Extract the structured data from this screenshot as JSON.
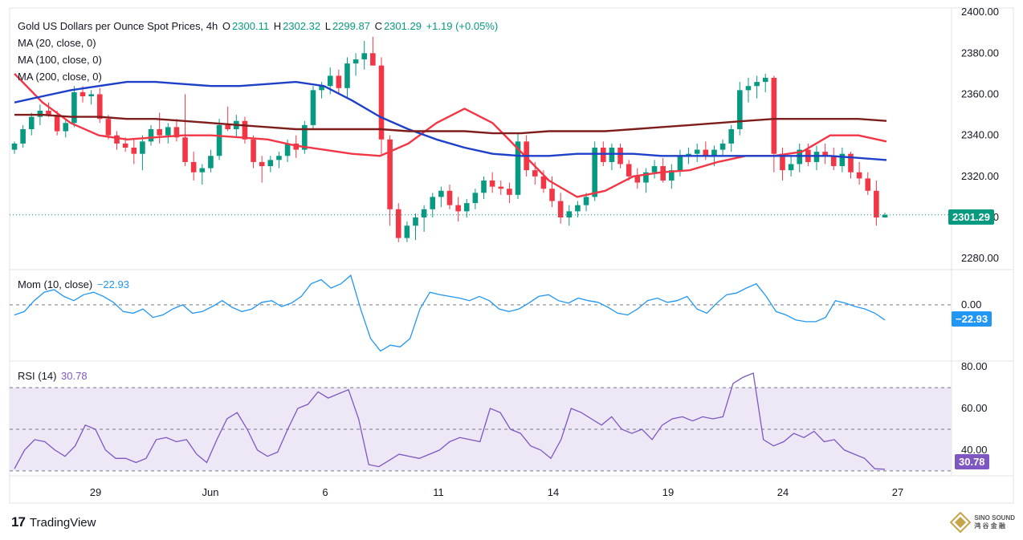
{
  "header": {
    "title": "Gold US Dollars per Ounce Spot Prices, 4h",
    "o_label": "O",
    "o_value": "2300.11",
    "h_label": "H",
    "h_value": "2302.32",
    "l_label": "L",
    "l_value": "2299.87",
    "c_label": "C",
    "c_value": "2301.29",
    "change": "+1.19 (+0.05%)"
  },
  "legends": {
    "ma20": "MA (20, close, 0)",
    "ma100": "MA (100, close, 0)",
    "ma200": "MA (200, close, 0)",
    "mom_label": "Mom (10, close)",
    "mom_value": "−22.93",
    "rsi_label": "RSI (14)",
    "rsi_value": "30.78"
  },
  "badges": {
    "price": "2301.29",
    "mom": "−22.93",
    "rsi": "30.78"
  },
  "footer": {
    "brand": "TradingView",
    "watermark_line1": "SINO SOUND",
    "watermark_line2": "鸿 谷 金 融"
  },
  "colors": {
    "up": "#089981",
    "down": "#f23645",
    "ma20": "#f23645",
    "ma100": "#1e40c8",
    "ma200": "#7f1d1d",
    "mom": "#2196f3",
    "rsi": "#7e57c2",
    "rsi_band": "#ede7f6"
  },
  "chart_data": [
    {
      "type": "candlestick",
      "title": "Gold US Dollars per Ounce Spot Prices, 4h",
      "price_ticks": [
        "2400.00",
        "2380.00",
        "2360.00",
        "2340.00",
        "2320.00",
        "2300.00",
        "2280.00"
      ],
      "ylim": [
        2275,
        2402
      ],
      "x_tick_labels": [
        "29",
        "Jun",
        "6",
        "11",
        "14",
        "19",
        "24",
        "27"
      ],
      "last_price": 2301.29,
      "candles": [
        {
          "o": 2333,
          "h": 2337,
          "l": 2331,
          "c": 2336
        },
        {
          "o": 2336,
          "h": 2345,
          "l": 2334,
          "c": 2343
        },
        {
          "o": 2343,
          "h": 2351,
          "l": 2340,
          "c": 2349
        },
        {
          "o": 2349,
          "h": 2355,
          "l": 2345,
          "c": 2352
        },
        {
          "o": 2352,
          "h": 2356,
          "l": 2349,
          "c": 2350
        },
        {
          "o": 2350,
          "h": 2352,
          "l": 2340,
          "c": 2342
        },
        {
          "o": 2342,
          "h": 2348,
          "l": 2339,
          "c": 2346
        },
        {
          "o": 2346,
          "h": 2364,
          "l": 2344,
          "c": 2361
        },
        {
          "o": 2361,
          "h": 2364,
          "l": 2356,
          "c": 2359
        },
        {
          "o": 2359,
          "h": 2362,
          "l": 2355,
          "c": 2360
        },
        {
          "o": 2360,
          "h": 2363,
          "l": 2346,
          "c": 2348
        },
        {
          "o": 2348,
          "h": 2350,
          "l": 2338,
          "c": 2340
        },
        {
          "o": 2340,
          "h": 2342,
          "l": 2333,
          "c": 2336
        },
        {
          "o": 2336,
          "h": 2339,
          "l": 2332,
          "c": 2334
        },
        {
          "o": 2334,
          "h": 2338,
          "l": 2326,
          "c": 2331
        },
        {
          "o": 2331,
          "h": 2340,
          "l": 2323,
          "c": 2337
        },
        {
          "o": 2337,
          "h": 2345,
          "l": 2335,
          "c": 2343
        },
        {
          "o": 2343,
          "h": 2351,
          "l": 2336,
          "c": 2340
        },
        {
          "o": 2340,
          "h": 2346,
          "l": 2336,
          "c": 2344
        },
        {
          "o": 2344,
          "h": 2348,
          "l": 2337,
          "c": 2339
        },
        {
          "o": 2339,
          "h": 2360,
          "l": 2325,
          "c": 2327
        },
        {
          "o": 2327,
          "h": 2332,
          "l": 2318,
          "c": 2322
        },
        {
          "o": 2322,
          "h": 2326,
          "l": 2316,
          "c": 2324
        },
        {
          "o": 2324,
          "h": 2333,
          "l": 2322,
          "c": 2330
        },
        {
          "o": 2330,
          "h": 2348,
          "l": 2328,
          "c": 2345
        },
        {
          "o": 2345,
          "h": 2354,
          "l": 2342,
          "c": 2343
        },
        {
          "o": 2343,
          "h": 2350,
          "l": 2339,
          "c": 2347
        },
        {
          "o": 2347,
          "h": 2349,
          "l": 2336,
          "c": 2338
        },
        {
          "o": 2338,
          "h": 2340,
          "l": 2324,
          "c": 2327
        },
        {
          "o": 2327,
          "h": 2330,
          "l": 2317,
          "c": 2325
        },
        {
          "o": 2325,
          "h": 2330,
          "l": 2322,
          "c": 2328
        },
        {
          "o": 2328,
          "h": 2332,
          "l": 2324,
          "c": 2330
        },
        {
          "o": 2330,
          "h": 2338,
          "l": 2327,
          "c": 2336
        },
        {
          "o": 2336,
          "h": 2340,
          "l": 2329,
          "c": 2333
        },
        {
          "o": 2333,
          "h": 2347,
          "l": 2331,
          "c": 2345
        },
        {
          "o": 2345,
          "h": 2364,
          "l": 2343,
          "c": 2362
        },
        {
          "o": 2362,
          "h": 2366,
          "l": 2358,
          "c": 2364
        },
        {
          "o": 2364,
          "h": 2373,
          "l": 2360,
          "c": 2369
        },
        {
          "o": 2369,
          "h": 2372,
          "l": 2360,
          "c": 2363
        },
        {
          "o": 2363,
          "h": 2378,
          "l": 2358,
          "c": 2375
        },
        {
          "o": 2375,
          "h": 2380,
          "l": 2369,
          "c": 2377
        },
        {
          "o": 2377,
          "h": 2386,
          "l": 2372,
          "c": 2380
        },
        {
          "o": 2380,
          "h": 2388,
          "l": 2374,
          "c": 2374
        },
        {
          "o": 2374,
          "h": 2378,
          "l": 2330,
          "c": 2338
        },
        {
          "o": 2338,
          "h": 2340,
          "l": 2296,
          "c": 2304
        },
        {
          "o": 2304,
          "h": 2307,
          "l": 2288,
          "c": 2290
        },
        {
          "o": 2290,
          "h": 2298,
          "l": 2288,
          "c": 2296
        },
        {
          "o": 2296,
          "h": 2302,
          "l": 2289,
          "c": 2300
        },
        {
          "o": 2300,
          "h": 2306,
          "l": 2293,
          "c": 2304
        },
        {
          "o": 2304,
          "h": 2312,
          "l": 2300,
          "c": 2310
        },
        {
          "o": 2310,
          "h": 2315,
          "l": 2305,
          "c": 2313
        },
        {
          "o": 2313,
          "h": 2316,
          "l": 2304,
          "c": 2306
        },
        {
          "o": 2306,
          "h": 2310,
          "l": 2298,
          "c": 2303
        },
        {
          "o": 2303,
          "h": 2309,
          "l": 2300,
          "c": 2307
        },
        {
          "o": 2307,
          "h": 2314,
          "l": 2304,
          "c": 2312
        },
        {
          "o": 2312,
          "h": 2320,
          "l": 2309,
          "c": 2318
        },
        {
          "o": 2318,
          "h": 2322,
          "l": 2312,
          "c": 2315
        },
        {
          "o": 2315,
          "h": 2318,
          "l": 2311,
          "c": 2314
        },
        {
          "o": 2314,
          "h": 2317,
          "l": 2307,
          "c": 2311
        },
        {
          "o": 2311,
          "h": 2341,
          "l": 2309,
          "c": 2337
        },
        {
          "o": 2337,
          "h": 2340,
          "l": 2320,
          "c": 2323
        },
        {
          "o": 2323,
          "h": 2327,
          "l": 2316,
          "c": 2320
        },
        {
          "o": 2320,
          "h": 2323,
          "l": 2312,
          "c": 2314
        },
        {
          "o": 2314,
          "h": 2320,
          "l": 2305,
          "c": 2308
        },
        {
          "o": 2308,
          "h": 2312,
          "l": 2297,
          "c": 2300
        },
        {
          "o": 2300,
          "h": 2306,
          "l": 2296,
          "c": 2303
        },
        {
          "o": 2303,
          "h": 2308,
          "l": 2300,
          "c": 2306
        },
        {
          "o": 2306,
          "h": 2312,
          "l": 2303,
          "c": 2310
        },
        {
          "o": 2310,
          "h": 2337,
          "l": 2308,
          "c": 2334
        },
        {
          "o": 2334,
          "h": 2337,
          "l": 2325,
          "c": 2327
        },
        {
          "o": 2327,
          "h": 2336,
          "l": 2323,
          "c": 2334
        },
        {
          "o": 2334,
          "h": 2336,
          "l": 2324,
          "c": 2326
        },
        {
          "o": 2326,
          "h": 2328,
          "l": 2318,
          "c": 2320
        },
        {
          "o": 2320,
          "h": 2324,
          "l": 2314,
          "c": 2317
        },
        {
          "o": 2317,
          "h": 2324,
          "l": 2312,
          "c": 2322
        },
        {
          "o": 2322,
          "h": 2328,
          "l": 2319,
          "c": 2325
        },
        {
          "o": 2325,
          "h": 2329,
          "l": 2317,
          "c": 2318
        },
        {
          "o": 2318,
          "h": 2326,
          "l": 2314,
          "c": 2323
        },
        {
          "o": 2323,
          "h": 2333,
          "l": 2320,
          "c": 2330
        },
        {
          "o": 2330,
          "h": 2334,
          "l": 2326,
          "c": 2331
        },
        {
          "o": 2331,
          "h": 2336,
          "l": 2327,
          "c": 2333
        },
        {
          "o": 2333,
          "h": 2337,
          "l": 2328,
          "c": 2330
        },
        {
          "o": 2330,
          "h": 2335,
          "l": 2325,
          "c": 2333
        },
        {
          "o": 2333,
          "h": 2338,
          "l": 2330,
          "c": 2336
        },
        {
          "o": 2336,
          "h": 2345,
          "l": 2332,
          "c": 2343
        },
        {
          "o": 2343,
          "h": 2366,
          "l": 2340,
          "c": 2362
        },
        {
          "o": 2362,
          "h": 2368,
          "l": 2356,
          "c": 2364
        },
        {
          "o": 2364,
          "h": 2369,
          "l": 2358,
          "c": 2366
        },
        {
          "o": 2366,
          "h": 2370,
          "l": 2361,
          "c": 2368
        },
        {
          "o": 2368,
          "h": 2369,
          "l": 2322,
          "c": 2331
        },
        {
          "o": 2331,
          "h": 2334,
          "l": 2318,
          "c": 2323
        },
        {
          "o": 2323,
          "h": 2330,
          "l": 2320,
          "c": 2326
        },
        {
          "o": 2326,
          "h": 2336,
          "l": 2322,
          "c": 2333
        },
        {
          "o": 2333,
          "h": 2336,
          "l": 2325,
          "c": 2327
        },
        {
          "o": 2327,
          "h": 2335,
          "l": 2323,
          "c": 2332
        },
        {
          "o": 2332,
          "h": 2336,
          "l": 2326,
          "c": 2330
        },
        {
          "o": 2330,
          "h": 2334,
          "l": 2323,
          "c": 2325
        },
        {
          "o": 2325,
          "h": 2334,
          "l": 2322,
          "c": 2331
        },
        {
          "o": 2331,
          "h": 2332,
          "l": 2319,
          "c": 2322
        },
        {
          "o": 2322,
          "h": 2327,
          "l": 2316,
          "c": 2319
        },
        {
          "o": 2319,
          "h": 2322,
          "l": 2311,
          "c": 2313
        },
        {
          "o": 2313,
          "h": 2318,
          "l": 2296,
          "c": 2300
        },
        {
          "o": 2300,
          "h": 2302.32,
          "l": 2299.87,
          "c": 2301.29
        }
      ],
      "moving_averages": [
        {
          "name": "MA (20, close, 0)",
          "values": [
            2370,
            2356,
            2346,
            2340,
            2338,
            2339,
            2340,
            2340,
            2339,
            2338,
            2335,
            2333,
            2331,
            2330,
            2336,
            2346,
            2353,
            2346,
            2332,
            2318,
            2310,
            2313,
            2320,
            2322,
            2323,
            2327,
            2330,
            2330,
            2332,
            2340,
            2340,
            2337
          ]
        },
        {
          "name": "MA (100, close, 0)",
          "values": [
            2356,
            2359,
            2362,
            2364,
            2366,
            2366,
            2365,
            2364,
            2364,
            2365,
            2366,
            2364,
            2357,
            2349,
            2343,
            2338,
            2334,
            2331,
            2330,
            2330,
            2331,
            2331,
            2331,
            2330,
            2330,
            2330,
            2330,
            2330,
            2330,
            2330,
            2329,
            2328
          ]
        },
        {
          "name": "MA (200, close, 0)",
          "values": [
            2350,
            2350,
            2349,
            2349,
            2348,
            2348,
            2347,
            2346,
            2345,
            2344,
            2343,
            2343,
            2343,
            2343,
            2342,
            2342,
            2342,
            2341,
            2341,
            2342,
            2342,
            2342,
            2343,
            2344,
            2345,
            2346,
            2347,
            2348,
            2348,
            2348,
            2348,
            2347
          ]
        }
      ]
    },
    {
      "type": "line",
      "title": "Mom (10, close)",
      "last_value": -22.93,
      "y_tick_labels": [
        "0.00"
      ],
      "ylim": [
        -65,
        40
      ],
      "values": [
        -12,
        -8,
        5,
        15,
        18,
        10,
        5,
        12,
        15,
        10,
        3,
        -8,
        -10,
        -5,
        -15,
        -12,
        -5,
        0,
        -10,
        -8,
        -2,
        5,
        -3,
        -8,
        -5,
        3,
        5,
        -2,
        2,
        10,
        25,
        30,
        20,
        25,
        35,
        -5,
        -40,
        -55,
        -48,
        -50,
        -40,
        -5,
        15,
        12,
        10,
        8,
        5,
        10,
        5,
        -5,
        -8,
        -5,
        2,
        10,
        12,
        5,
        2,
        8,
        5,
        3,
        -3,
        -10,
        -12,
        -5,
        5,
        8,
        3,
        5,
        10,
        -5,
        -10,
        2,
        12,
        14,
        20,
        25,
        10,
        -8,
        -12,
        -18,
        -20,
        -20,
        -15,
        5,
        2,
        -2,
        -5,
        -10,
        -18
      ]
    },
    {
      "type": "line",
      "title": "RSI (14)",
      "last_value": 30.78,
      "y_tick_labels": [
        "80.00",
        "60.00",
        "40.00"
      ],
      "ylim": [
        28,
        82
      ],
      "levels": [
        70,
        50,
        30
      ],
      "values": [
        31,
        40,
        45,
        44,
        40,
        37,
        42,
        52,
        50,
        40,
        36,
        36,
        34,
        36,
        45,
        46,
        44,
        45,
        38,
        34,
        45,
        55,
        58,
        50,
        40,
        37,
        39,
        50,
        60,
        62,
        68,
        65,
        67,
        69,
        55,
        33,
        32,
        35,
        38,
        37,
        36,
        38,
        40,
        44,
        46,
        45,
        44,
        60,
        58,
        50,
        48,
        42,
        40,
        36,
        45,
        60,
        58,
        55,
        52,
        56,
        50,
        48,
        50,
        45,
        52,
        55,
        56,
        54,
        56,
        55,
        56,
        72,
        75,
        77,
        45,
        42,
        44,
        48,
        46,
        49,
        44,
        45,
        40,
        38,
        36,
        31,
        30.78
      ]
    }
  ]
}
